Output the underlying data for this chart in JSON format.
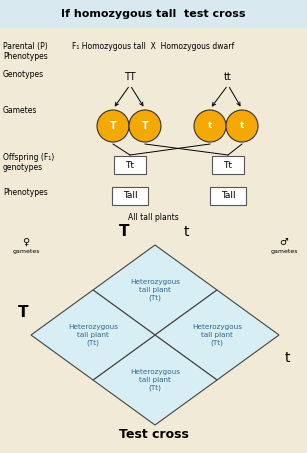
{
  "title": "If homozygous tall  test cross",
  "bg_color": "#f0ead6",
  "header_bg": "#d8eaf0",
  "diamond_fill": "#d8eef5",
  "diamond_edge": "#444444",
  "circle_fill": "#f5a800",
  "circle_edge": "#333333",
  "box_fill": "#ffffff",
  "box_edge": "#555555",
  "label_color": "#000000",
  "teal_text": "#336688",
  "left_labels": [
    "Parental (P)\nPhenotypes",
    "Genotypes",
    "Gametes",
    "Offspring (F₁)\ngenotypes",
    "Phenotypes"
  ],
  "parental_text": "F₁ Homozygous tall  X  Homozygous dwarf",
  "genotype_left": "TT",
  "genotype_right": "tt",
  "gamete_labels": [
    "T",
    "T",
    "t",
    "t"
  ],
  "offspring_label": "Tt",
  "phenotype_label": "Tall",
  "all_tall_text": "All tall plants",
  "punnett_cells": [
    "Heterozygous\ntall plant\n(Tt)",
    "Heterozygous\ntall plant\n(Tt)",
    "Heterozygous\ntall plant\n(Tt)",
    "Heterozygous\ntall plant\n(Tt)"
  ],
  "col_gametes": [
    "T",
    "t"
  ],
  "row_gametes": [
    "T",
    "t"
  ],
  "female_symbol": "♀",
  "male_symbol": "♂",
  "test_cross_label": "Test cross"
}
